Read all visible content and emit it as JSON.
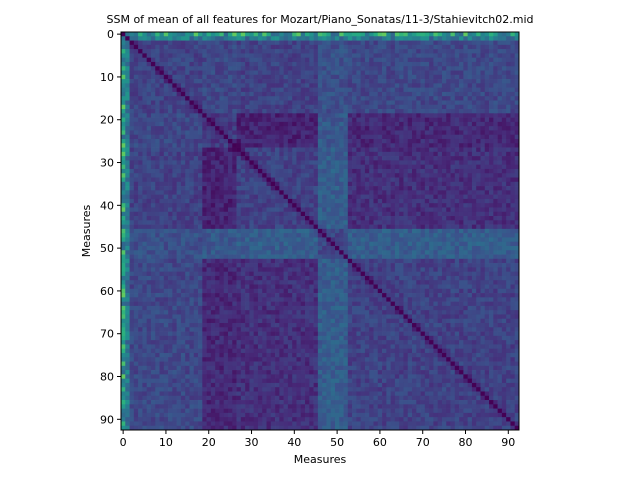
{
  "chart_data": {
    "type": "heatmap",
    "title": "SSM of mean of all features for Mozart/Piano_Sonatas/11-3/Stahievitch02.mid",
    "xlabel": "Measures",
    "ylabel": "Measures",
    "n": 93,
    "xlim": [
      0,
      93
    ],
    "ylim": [
      93,
      0
    ],
    "x_ticks": [
      0,
      10,
      20,
      30,
      40,
      50,
      60,
      70,
      80,
      90
    ],
    "y_ticks": [
      0,
      10,
      20,
      30,
      40,
      50,
      60,
      70,
      80,
      90
    ],
    "colormap": "viridis",
    "value_range": [
      0,
      1
    ],
    "diagonal_value": 0.0,
    "base_value": 0.22,
    "section_boundaries": [
      19,
      27,
      46,
      53
    ],
    "block_values": [
      [
        0.2,
        0.22,
        0.2,
        0.25,
        0.22
      ],
      [
        0.22,
        0.18,
        0.1,
        0.28,
        0.12
      ],
      [
        0.2,
        0.1,
        0.2,
        0.3,
        0.14
      ],
      [
        0.25,
        0.28,
        0.3,
        0.22,
        0.3
      ],
      [
        0.22,
        0.12,
        0.14,
        0.3,
        0.2
      ]
    ],
    "bright_lines": {
      "row_0": 0.55,
      "col_0": 0.55,
      "row_1": 0.4,
      "col_1": 0.4
    },
    "grid": false,
    "legend": "none"
  }
}
